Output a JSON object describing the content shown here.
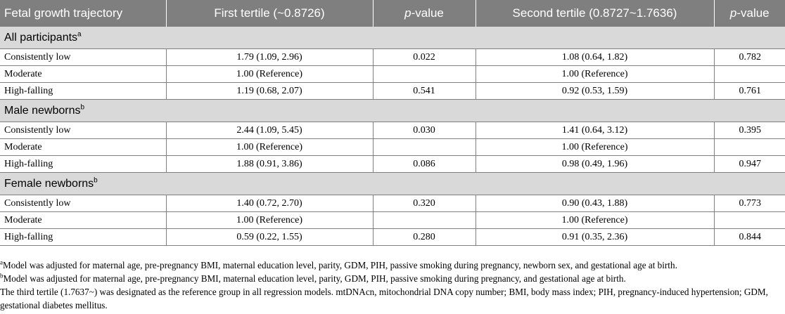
{
  "header": {
    "col1": "Fetal growth trajectory",
    "col2": "First tertile (~0.8726)",
    "col3_italic": "p",
    "col3_rest": "-value",
    "col4": "Second tertile (0.8727~1.7636)",
    "col5_italic": "p",
    "col5_rest": "-value"
  },
  "groups": [
    {
      "label": "All participants",
      "sup": "a",
      "rows": [
        {
          "traj": "Consistently low",
          "t1": "1.79 (1.09, 2.96)",
          "p1": "0.022",
          "t2": "1.08 (0.64, 1.82)",
          "p2": "0.782"
        },
        {
          "traj": "Moderate",
          "t1": "1.00 (Reference)",
          "p1": "",
          "t2": "1.00 (Reference)",
          "p2": ""
        },
        {
          "traj": "High-falling",
          "t1": "1.19 (0.68, 2.07)",
          "p1": "0.541",
          "t2": "0.92 (0.53, 1.59)",
          "p2": "0.761"
        }
      ]
    },
    {
      "label": "Male newborns",
      "sup": "b",
      "rows": [
        {
          "traj": "Consistently low",
          "t1": "2.44 (1.09, 5.45)",
          "p1": "0.030",
          "t2": "1.41 (0.64, 3.12)",
          "p2": "0.395"
        },
        {
          "traj": "Moderate",
          "t1": "1.00 (Reference)",
          "p1": "",
          "t2": "1.00 (Reference)",
          "p2": ""
        },
        {
          "traj": "High-falling",
          "t1": "1.88 (0.91, 3.86)",
          "p1": "0.086",
          "t2": "0.98 (0.49, 1.96)",
          "p2": "0.947"
        }
      ]
    },
    {
      "label": "Female newborns",
      "sup": "b",
      "rows": [
        {
          "traj": "Consistently low",
          "t1": "1.40 (0.72, 2.70)",
          "p1": "0.320",
          "t2": "0.90 (0.43, 1.88)",
          "p2": "0.773"
        },
        {
          "traj": "Moderate",
          "t1": "1.00 (Reference)",
          "p1": "",
          "t2": "1.00 (Reference)",
          "p2": ""
        },
        {
          "traj": "High-falling",
          "t1": "0.59 (0.22, 1.55)",
          "p1": "0.280",
          "t2": "0.91 (0.35, 2.36)",
          "p2": "0.844"
        }
      ]
    }
  ],
  "notes": [
    {
      "sup": "a",
      "text": "Model was adjusted for maternal age, pre-pregnancy BMI, maternal education level, parity, GDM, PIH, passive smoking during pregnancy, newborn sex, and gestational age at birth."
    },
    {
      "sup": "b",
      "text": "Model was adjusted for maternal age, pre-pregnancy BMI, maternal education level, parity, GDM, PIH, passive smoking during pregnancy, and gestational age at birth."
    },
    {
      "sup": "",
      "text": "The third tertile (1.7637~) was designated as the reference group in all regression models. mtDNAcn, mitochondrial DNA copy number; BMI, body mass index; PIH, pregnancy-induced hypertension; GDM, gestational diabetes mellitus."
    }
  ]
}
